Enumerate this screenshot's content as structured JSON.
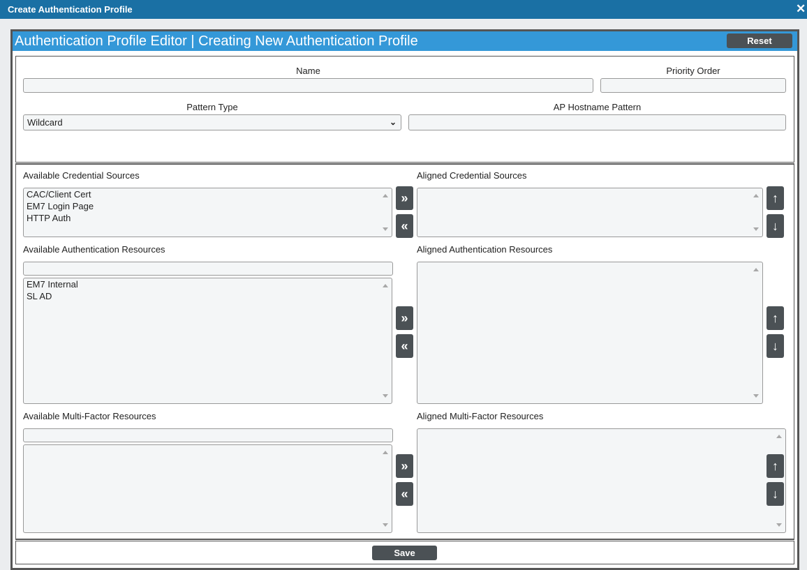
{
  "window": {
    "title": "Create Authentication Profile",
    "close_icon": "close-icon"
  },
  "editor": {
    "title": "Authentication Profile Editor | Creating New Authentication Profile",
    "reset_label": "Reset",
    "save_label": "Save"
  },
  "form": {
    "name_label": "Name",
    "name_value": "",
    "priority_label": "Priority Order",
    "priority_value": "",
    "pattern_type_label": "Pattern Type",
    "pattern_type_value": "Wildcard",
    "hostname_label": "AP Hostname Pattern",
    "hostname_value": ""
  },
  "credential": {
    "available_label": "Available Credential Sources",
    "aligned_label": "Aligned Credential Sources",
    "available_items": [
      "CAC/Client Cert",
      "EM7 Login Page",
      "HTTP Auth"
    ],
    "aligned_items": []
  },
  "auth": {
    "available_label": "Available Authentication Resources",
    "aligned_label": "Aligned Authentication Resources",
    "filter_value": "",
    "available_items": [
      "EM7 Internal",
      "SL AD"
    ],
    "aligned_items": []
  },
  "mfa": {
    "available_label": "Available Multi-Factor Resources",
    "aligned_label": "Aligned Multi-Factor Resources",
    "filter_value": "",
    "available_items": [],
    "aligned_items": []
  },
  "buttons": {
    "add": "»",
    "remove": "«",
    "up": "↑",
    "down": "↓"
  }
}
